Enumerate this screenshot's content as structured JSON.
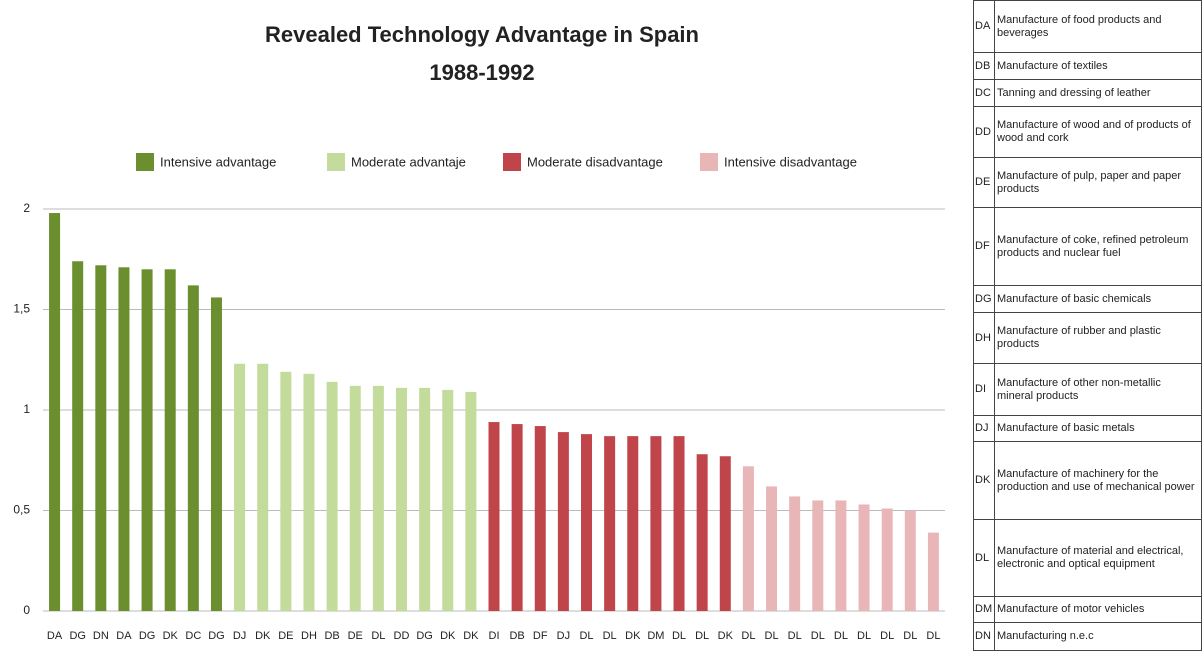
{
  "chart_data": {
    "type": "bar",
    "title": "Revealed Technology Advantage in Spain",
    "subtitle": "1988-1992",
    "categories": [
      "DA",
      "DG",
      "DN",
      "DA",
      "DG",
      "DK",
      "DC",
      "DG",
      "DJ",
      "DK",
      "DE",
      "DH",
      "DB",
      "DE",
      "DL",
      "DD",
      "DG",
      "DK",
      "DK",
      "DI",
      "DB",
      "DF",
      "DJ",
      "DL",
      "DL",
      "DK",
      "DM",
      "DL",
      "DL",
      "DK",
      "DL",
      "DL",
      "DL",
      "DL",
      "DL",
      "DL",
      "DL",
      "DL",
      "DL"
    ],
    "series": [
      {
        "name": "Intensive advantage",
        "color": "#6b8e2f",
        "values": [
          1.98,
          1.74,
          1.72,
          1.71,
          1.7,
          1.7,
          1.62,
          1.56,
          null,
          null,
          null,
          null,
          null,
          null,
          null,
          null,
          null,
          null,
          null,
          null,
          null,
          null,
          null,
          null,
          null,
          null,
          null,
          null,
          null,
          null,
          null,
          null,
          null,
          null,
          null,
          null,
          null,
          null,
          null
        ]
      },
      {
        "name": "Moderate advantaje",
        "color": "#c3dc9b",
        "values": [
          null,
          null,
          null,
          null,
          null,
          null,
          null,
          null,
          1.23,
          1.23,
          1.19,
          1.18,
          1.14,
          1.12,
          1.12,
          1.11,
          1.11,
          1.1,
          1.09,
          null,
          null,
          null,
          null,
          null,
          null,
          null,
          null,
          null,
          null,
          null,
          null,
          null,
          null,
          null,
          null,
          null,
          null,
          null,
          null
        ]
      },
      {
        "name": "Moderate disadvantage",
        "color": "#c0454a",
        "values": [
          null,
          null,
          null,
          null,
          null,
          null,
          null,
          null,
          null,
          null,
          null,
          null,
          null,
          null,
          null,
          null,
          null,
          null,
          null,
          0.94,
          0.93,
          0.92,
          0.89,
          0.88,
          0.87,
          0.87,
          0.87,
          0.87,
          0.78,
          0.77,
          null,
          null,
          null,
          null,
          null,
          null,
          null,
          null,
          null
        ]
      },
      {
        "name": "Intensive disadvantage",
        "color": "#e9b6b8",
        "values": [
          null,
          null,
          null,
          null,
          null,
          null,
          null,
          null,
          null,
          null,
          null,
          null,
          null,
          null,
          null,
          null,
          null,
          null,
          null,
          null,
          null,
          null,
          null,
          null,
          null,
          null,
          null,
          null,
          null,
          null,
          0.72,
          0.62,
          0.57,
          0.55,
          0.55,
          0.53,
          0.51,
          0.5,
          0.39
        ]
      }
    ],
    "ylim": [
      0,
      2
    ],
    "yticks": [
      0,
      {
        "value": 0.5,
        "label": "0,5"
      },
      1,
      {
        "value": 1.5,
        "label": "1,5"
      },
      2
    ],
    "grid": true
  },
  "table": {
    "rows": [
      [
        "DA",
        "Manufacture of food products and beverages"
      ],
      [
        "DB",
        "Manufacture of textiles"
      ],
      [
        "DC",
        "Tanning and dressing of leather"
      ],
      [
        "DD",
        "Manufacture of wood and of products of wood and cork"
      ],
      [
        "DE",
        "Manufacture of pulp, paper and paper products"
      ],
      [
        "DF",
        "Manufacture of coke, refined petroleum products and nuclear fuel"
      ],
      [
        "DG",
        "Manufacture of basic chemicals"
      ],
      [
        "DH",
        "Manufacture of rubber and plastic products"
      ],
      [
        "DI",
        "Manufacture of other non-metallic mineral products"
      ],
      [
        "DJ",
        "Manufacture of basic metals"
      ],
      [
        "DK",
        "Manufacture of machinery for the production and use of mechanical power"
      ],
      [
        "DL",
        "Manufacture of material and electrical, electronic and optical equipment"
      ],
      [
        "DM",
        "Manufacture of motor vehicles"
      ],
      [
        "DN",
        "Manufacturing n.e.c"
      ]
    ]
  }
}
